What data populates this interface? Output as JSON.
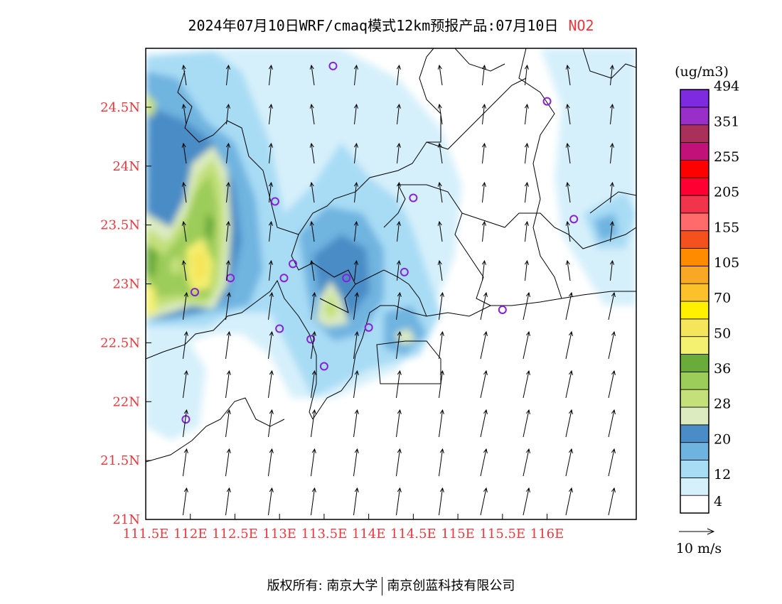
{
  "header": {
    "title": "2024年07月10日WRF/cmaq模式12km预报产品:07月10日",
    "pollutant": "NO2"
  },
  "map": {
    "lon_range": [
      111.5,
      117.0
    ],
    "lat_range": [
      21.0,
      25.0
    ],
    "lon_ticks": [
      {
        "value": 111.5,
        "label": "111.5E"
      },
      {
        "value": 112.0,
        "label": "112E"
      },
      {
        "value": 112.5,
        "label": "112.5E"
      },
      {
        "value": 113.0,
        "label": "113E"
      },
      {
        "value": 113.5,
        "label": "113.5E"
      },
      {
        "value": 114.0,
        "label": "114E"
      },
      {
        "value": 114.5,
        "label": "114.5E"
      },
      {
        "value": 115.0,
        "label": "115E"
      },
      {
        "value": 115.5,
        "label": "115.5E"
      },
      {
        "value": 116.0,
        "label": "116E"
      }
    ],
    "lat_ticks": [
      {
        "value": 21.0,
        "label": "21N"
      },
      {
        "value": 21.5,
        "label": "21.5N"
      },
      {
        "value": 22.0,
        "label": "22N"
      },
      {
        "value": 22.5,
        "label": "22.5N"
      },
      {
        "value": 23.0,
        "label": "23N"
      },
      {
        "value": 23.5,
        "label": "23.5N"
      },
      {
        "value": 24.0,
        "label": "24N"
      },
      {
        "value": 24.5,
        "label": "24.5N"
      }
    ],
    "stations": [
      [
        113.6,
        24.85
      ],
      [
        116.0,
        24.55
      ],
      [
        112.95,
        23.7
      ],
      [
        114.5,
        23.73
      ],
      [
        116.3,
        23.55
      ],
      [
        112.45,
        23.05
      ],
      [
        113.05,
        23.05
      ],
      [
        113.15,
        23.17
      ],
      [
        113.75,
        23.05
      ],
      [
        114.4,
        23.1
      ],
      [
        112.05,
        22.93
      ],
      [
        113.0,
        22.62
      ],
      [
        113.35,
        22.53
      ],
      [
        114.0,
        22.63
      ],
      [
        115.5,
        22.78
      ],
      [
        113.5,
        22.3
      ],
      [
        111.95,
        21.85
      ]
    ]
  },
  "colorbar": {
    "unit": "(ug/m3)",
    "colors": [
      "#ffffff",
      "#d6f0fb",
      "#a8dcf5",
      "#6fb4e0",
      "#4a8cc6",
      "#dcebc0",
      "#c3e07a",
      "#9ccc5a",
      "#6aab3a",
      "#f4f070",
      "#f5e55a",
      "#fff000",
      "#fbc02a",
      "#f9a825",
      "#ff8c00",
      "#f4511e",
      "#ff6b6b",
      "#f2334c",
      "#ff0033",
      "#ff0000",
      "#c2127a",
      "#a8305a",
      "#9a2ec8",
      "#7d2ae0"
    ],
    "labels": [
      {
        "index": 1,
        "text": "4"
      },
      {
        "index": 3,
        "text": "12"
      },
      {
        "index": 5,
        "text": "20"
      },
      {
        "index": 7,
        "text": "28"
      },
      {
        "index": 9,
        "text": "36"
      },
      {
        "index": 11,
        "text": "50"
      },
      {
        "index": 13,
        "text": "70"
      },
      {
        "index": 15,
        "text": "105"
      },
      {
        "index": 17,
        "text": "155"
      },
      {
        "index": 19,
        "text": "205"
      },
      {
        "index": 21,
        "text": "255"
      },
      {
        "index": 23,
        "text": "351"
      },
      {
        "index": 25,
        "text": "494"
      }
    ]
  },
  "wind_legend": {
    "label": "10 m/s"
  },
  "footer": {
    "left": "版权所有: 南京大学",
    "right": "南京创蓝科技有限公司"
  }
}
